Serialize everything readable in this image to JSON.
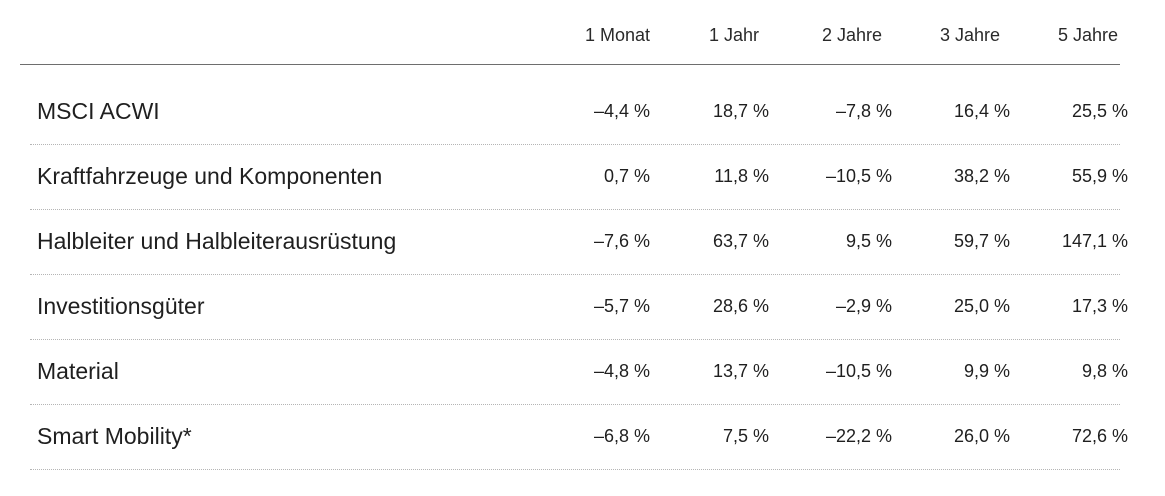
{
  "chart_data": {
    "type": "table",
    "columns": [
      "1 Monat",
      "1 Jahr",
      "2 Jahre",
      "3 Jahre",
      "5 Jahre"
    ],
    "rows": [
      {
        "label": "MSCI ACWI",
        "values": [
          -4.4,
          18.7,
          -7.8,
          16.4,
          25.5
        ],
        "display": [
          "–4,4 %",
          "18,7 %",
          "–7,8 %",
          "16,4 %",
          "25,5 %"
        ]
      },
      {
        "label": "Kraftfahrzeuge und Komponenten",
        "values": [
          0.7,
          11.8,
          -10.5,
          38.2,
          55.9
        ],
        "display": [
          "0,7 %",
          "11,8 %",
          "–10,5 %",
          "38,2 %",
          "55,9 %"
        ]
      },
      {
        "label": "Halbleiter und Halbleiterausrüstung",
        "values": [
          -7.6,
          63.7,
          9.5,
          59.7,
          147.1
        ],
        "display": [
          "–7,6 %",
          "63,7 %",
          "9,5 %",
          "59,7 %",
          "147,1 %"
        ]
      },
      {
        "label": "Investitionsgüter",
        "values": [
          -5.7,
          28.6,
          -2.9,
          25.0,
          17.3
        ],
        "display": [
          "–5,7 %",
          "28,6 %",
          "–2,9 %",
          "25,0 %",
          "17,3 %"
        ]
      },
      {
        "label": "Material",
        "values": [
          -4.8,
          13.7,
          -10.5,
          9.9,
          9.8
        ],
        "display": [
          "–4,8 %",
          "13,7 %",
          "–10,5 %",
          "9,9 %",
          "9,8 %"
        ]
      },
      {
        "label": "Smart Mobility*",
        "values": [
          -6.8,
          7.5,
          -22.2,
          26.0,
          72.6
        ],
        "display": [
          "–6,8 %",
          "7,5 %",
          "–22,2 %",
          "26,0 %",
          "72,6 %"
        ]
      }
    ],
    "unit": "%"
  },
  "colors": {
    "text": "#1f1f1f",
    "header_rule": "#6e6e6e",
    "row_rule": "#b5b5b5",
    "background": "#ffffff"
  }
}
